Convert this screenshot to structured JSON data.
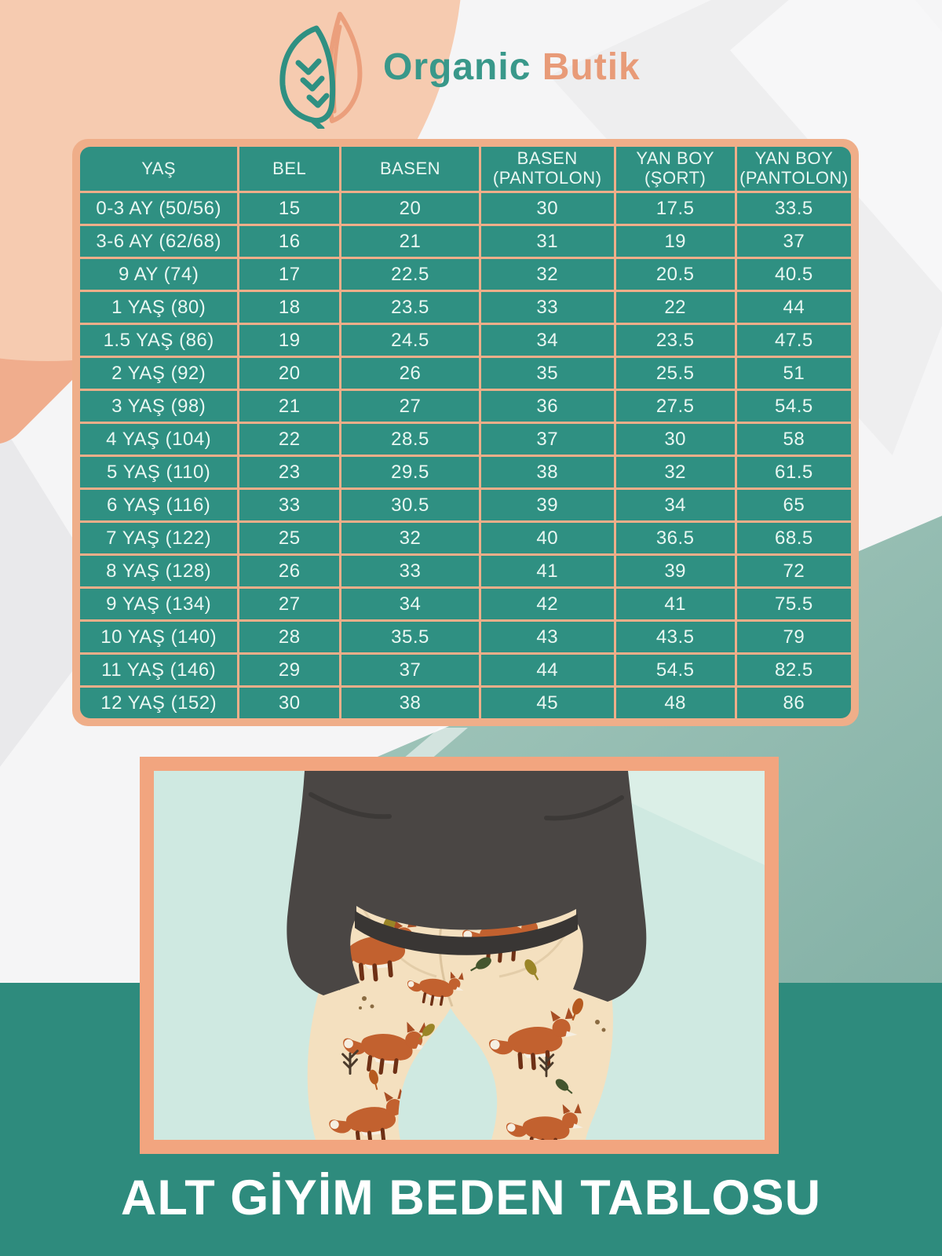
{
  "brand": {
    "name_primary": "Organic",
    "name_secondary": "Butik",
    "icon": "leaf-icon"
  },
  "size_table": {
    "headers": [
      "YAŞ",
      "BEL",
      "BASEN",
      "BASEN\n(PANTOLON)",
      "YAN BOY\n(ŞORT)",
      "YAN BOY\n(PANTOLON)"
    ],
    "rows": [
      [
        "0-3 AY (50/56)",
        "15",
        "20",
        "30",
        "17.5",
        "33.5"
      ],
      [
        "3-6 AY (62/68)",
        "16",
        "21",
        "31",
        "19",
        "37"
      ],
      [
        "9 AY (74)",
        "17",
        "22.5",
        "32",
        "20.5",
        "40.5"
      ],
      [
        "1 YAŞ (80)",
        "18",
        "23.5",
        "33",
        "22",
        "44"
      ],
      [
        "1.5 YAŞ (86)",
        "19",
        "24.5",
        "34",
        "23.5",
        "47.5"
      ],
      [
        "2 YAŞ (92)",
        "20",
        "26",
        "35",
        "25.5",
        "51"
      ],
      [
        "3 YAŞ (98)",
        "21",
        "27",
        "36",
        "27.5",
        "54.5"
      ],
      [
        "4 YAŞ (104)",
        "22",
        "28.5",
        "37",
        "30",
        "58"
      ],
      [
        "5 YAŞ (110)",
        "23",
        "29.5",
        "38",
        "32",
        "61.5"
      ],
      [
        "6 YAŞ (116)",
        "33",
        "30.5",
        "39",
        "34",
        "65"
      ],
      [
        "7 YAŞ (122)",
        "25",
        "32",
        "40",
        "36.5",
        "68.5"
      ],
      [
        "8 YAŞ (128)",
        "26",
        "33",
        "41",
        "39",
        "72"
      ],
      [
        "9 YAŞ (134)",
        "27",
        "34",
        "42",
        "41",
        "75.5"
      ],
      [
        "10 YAŞ (140)",
        "28",
        "35.5",
        "43",
        "43.5",
        "79"
      ],
      [
        "11 YAŞ (146)",
        "29",
        "37",
        "44",
        "54.5",
        "82.5"
      ],
      [
        "12 YAŞ (152)",
        "30",
        "38",
        "45",
        "48",
        "86"
      ]
    ]
  },
  "footer": {
    "title": "ALT GİYİM BEDEN TABLOSU"
  },
  "colors": {
    "table_cell_teal": "#2f9082",
    "table_grid_salmon": "#efae89",
    "banner_teal": "#2e8b7d",
    "peach_blob": "#f6cbb0",
    "peach_accent": "#f0ad8d",
    "sage_panel": "#93bcb1",
    "photo_frame_salmon": "#f2a57f",
    "photo_background_mint": "#cfe9e1",
    "logo_teal": "#39988a",
    "logo_peach": "#e89b78",
    "title_text": "#ffffff",
    "cell_text": "#e9f7f2"
  }
}
